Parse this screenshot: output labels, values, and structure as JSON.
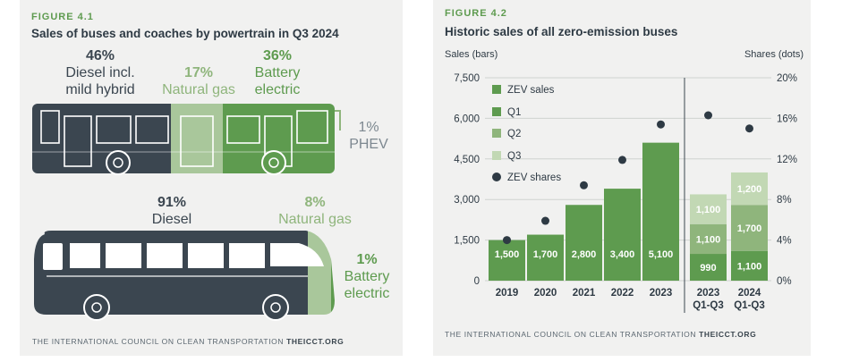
{
  "figure1": {
    "label": "FIGURE 4.1",
    "title": "Sales of buses and coaches by powertrain in Q3 2024",
    "buses": {
      "shares": [
        {
          "pct": "46%",
          "label1": "Diesel incl.",
          "label2": "mild hybrid"
        },
        {
          "pct": "17%",
          "label1": "Natural gas",
          "label2": ""
        },
        {
          "pct": "36%",
          "label1": "Battery",
          "label2": "electric"
        },
        {
          "pct": "1%",
          "label1": "PHEV",
          "label2": ""
        }
      ]
    },
    "coaches": {
      "shares": [
        {
          "pct": "91%",
          "label1": "Diesel",
          "label2": ""
        },
        {
          "pct": "8%",
          "label1": "Natural gas",
          "label2": ""
        },
        {
          "pct": "1%",
          "label1": "Battery",
          "label2": "electric"
        }
      ]
    },
    "footer_text": "THE INTERNATIONAL COUNCIL ON CLEAN TRANSPORTATION",
    "footer_site": "THEICCT.ORG"
  },
  "figure2": {
    "label": "FIGURE 4.2",
    "title": "Historic sales of all zero-emission buses",
    "footer_text": "THE INTERNATIONAL COUNCIL ON CLEAN TRANSPORTATION",
    "footer_site": "THEICCT.ORG"
  },
  "colors": {
    "dark": "#3b4650",
    "q1": "#5e9b4f",
    "q2": "#8fb57c",
    "q3": "#c2d8b4",
    "dots": "#2e3a44",
    "accent": "#5e9b4f"
  },
  "chart_data": {
    "type": "bar",
    "ylabel": "Sales (bars)",
    "y2label": "Shares (dots)",
    "ylim": [
      0,
      7500
    ],
    "yticks": [
      "7,500",
      "6,000",
      "4,500",
      "3,000",
      "1,500",
      "0"
    ],
    "ytick_values": [
      7500,
      6000,
      4500,
      3000,
      1500,
      0
    ],
    "y2lim": [
      0,
      20
    ],
    "y2ticks": [
      "20%",
      "16%",
      "12%",
      "8%",
      "4%",
      "0%"
    ],
    "y2tick_values": [
      20,
      16,
      12,
      8,
      4,
      0
    ],
    "grid": true,
    "legend_position": "top-left",
    "legend": [
      {
        "label": "ZEV sales",
        "kind": "square",
        "color": "#5e9b4f"
      },
      {
        "label": "Q1",
        "kind": "square",
        "color": "#5e9b4f"
      },
      {
        "label": "Q2",
        "kind": "square",
        "color": "#8fb57c"
      },
      {
        "label": "Q3",
        "kind": "square",
        "color": "#c2d8b4"
      },
      {
        "label": "ZEV shares",
        "kind": "dot",
        "color": "#2e3a44"
      }
    ],
    "annual": {
      "categories": [
        "2019",
        "2020",
        "2021",
        "2022",
        "2023"
      ],
      "values": [
        1500,
        1700,
        2800,
        3400,
        5100
      ],
      "labels": [
        "1,500",
        "1,700",
        "2,800",
        "3,400",
        "5,100"
      ],
      "shares": [
        4.0,
        5.9,
        9.4,
        11.9,
        15.4
      ]
    },
    "quarterly": {
      "categories": [
        [
          "2023",
          "Q1-Q3"
        ],
        [
          "2024",
          "Q1-Q3"
        ]
      ],
      "series": [
        {
          "name": "Q1",
          "values": [
            990,
            1100
          ],
          "labels": [
            "990",
            "1,100"
          ]
        },
        {
          "name": "Q2",
          "values": [
            1100,
            1700
          ],
          "labels": [
            "1,100",
            "1,700"
          ]
        },
        {
          "name": "Q3",
          "values": [
            1100,
            1200
          ],
          "labels": [
            "1,100",
            "1,200"
          ]
        }
      ],
      "shares": [
        16.3,
        15.0
      ]
    }
  }
}
